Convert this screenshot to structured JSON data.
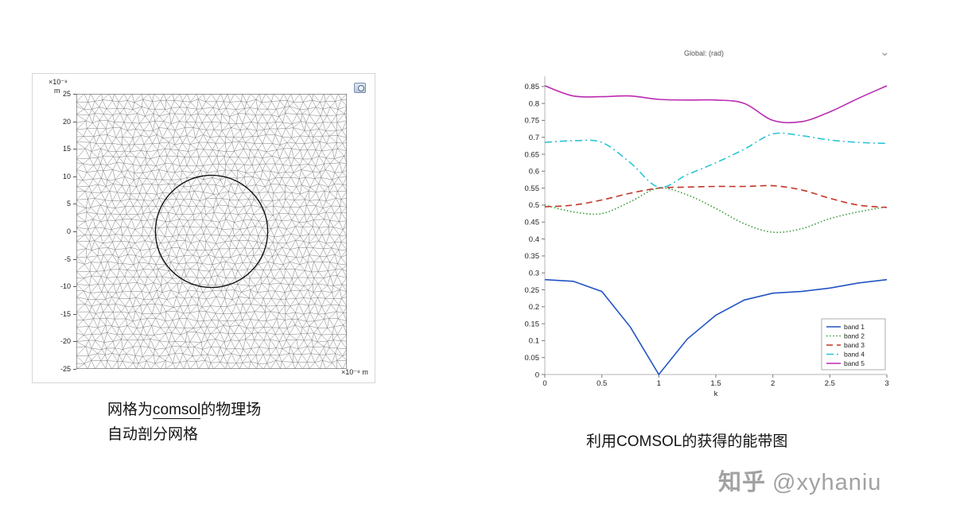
{
  "mesh_figure": {
    "y_axis_exp_label": "×10⁻⁸",
    "y_axis_unit": "m",
    "x_axis_label": "×10⁻⁸ m",
    "y_ticks": [
      25,
      20,
      15,
      10,
      5,
      0,
      -5,
      -10,
      -15,
      -20,
      -25
    ],
    "axis_half_range": 25,
    "circle_radius_units": 10.2,
    "caption_pre": "网格为",
    "caption_link": "comsol",
    "caption_post": "的物理场",
    "caption_line2": "自动剖分网格"
  },
  "band_chart": {
    "header_title": "Global: (rad)",
    "caption": "利用COMSOL的获得的能带图"
  },
  "watermark": {
    "brand": "知乎",
    "handle": "@xyhaniu"
  },
  "chart_data": {
    "type": "line",
    "title": "Global: (rad)",
    "xlabel": "k",
    "ylabel": "",
    "xlim": [
      0,
      3
    ],
    "ylim": [
      0,
      0.88
    ],
    "x_ticks": [
      0,
      0.5,
      1,
      1.5,
      2,
      2.5,
      3
    ],
    "y_ticks": [
      0,
      0.05,
      0.1,
      0.15,
      0.2,
      0.25,
      0.3,
      0.35,
      0.4,
      0.45,
      0.5,
      0.55,
      0.6,
      0.65,
      0.7,
      0.75,
      0.8,
      0.85
    ],
    "grid": false,
    "legend_position": "lower right",
    "x": [
      0,
      0.25,
      0.5,
      0.75,
      1,
      1.25,
      1.5,
      1.75,
      2,
      2.25,
      2.5,
      2.75,
      3
    ],
    "series": [
      {
        "name": "band 1",
        "color": "#2254c4",
        "dash": "solid",
        "smooth": false,
        "values": [
          0.28,
          0.275,
          0.245,
          0.14,
          0.0,
          0.105,
          0.175,
          0.22,
          0.24,
          0.245,
          0.255,
          0.27,
          0.28
        ]
      },
      {
        "name": "band 2",
        "color": "#3a9a3a",
        "dash": "dotted",
        "smooth": true,
        "values": [
          0.5,
          0.48,
          0.475,
          0.51,
          0.55,
          0.53,
          0.49,
          0.445,
          0.42,
          0.43,
          0.46,
          0.48,
          0.495
        ]
      },
      {
        "name": "band 3",
        "color": "#c23528",
        "dash": "dashed",
        "smooth": true,
        "values": [
          0.495,
          0.5,
          0.515,
          0.535,
          0.55,
          0.553,
          0.555,
          0.555,
          0.557,
          0.545,
          0.52,
          0.5,
          0.493
        ]
      },
      {
        "name": "band 4",
        "color": "#2bc4d6",
        "dash": "dashdot",
        "smooth": true,
        "values": [
          0.685,
          0.69,
          0.685,
          0.625,
          0.553,
          0.59,
          0.625,
          0.665,
          0.71,
          0.705,
          0.692,
          0.685,
          0.682
        ]
      },
      {
        "name": "band 5",
        "color": "#bb2ab4",
        "dash": "solid",
        "smooth": true,
        "values": [
          0.852,
          0.822,
          0.82,
          0.822,
          0.812,
          0.81,
          0.81,
          0.8,
          0.75,
          0.746,
          0.775,
          0.815,
          0.852
        ]
      }
    ]
  }
}
